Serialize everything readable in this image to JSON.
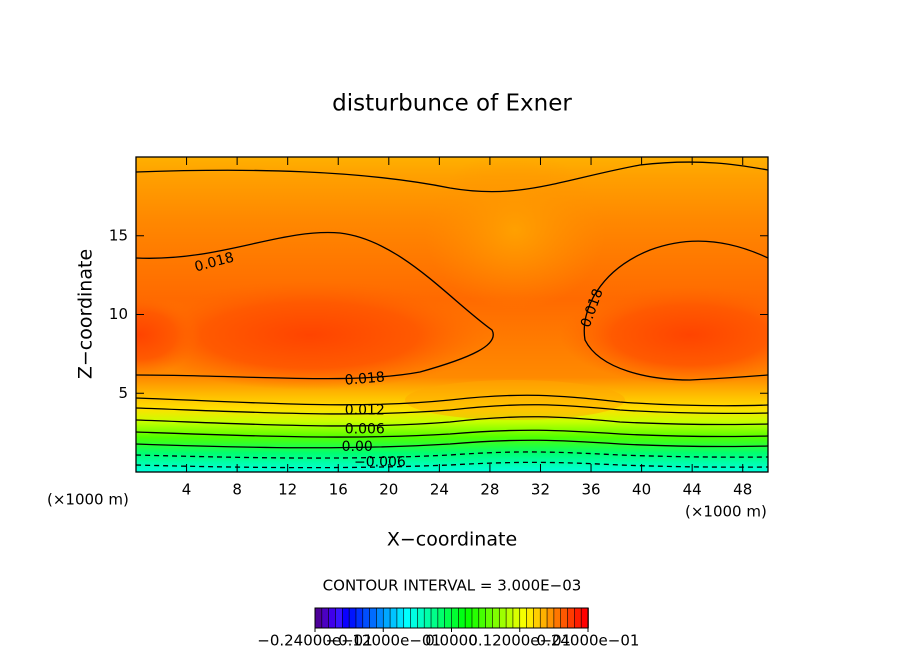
{
  "chart_data": {
    "type": "contour",
    "title": "disturbunce of Exner",
    "xlabel": "X−coordinate",
    "ylabel": "Z−coordinate",
    "x_unit_label": "(×1000 m)",
    "x_unit_label_right": "(×1000 m)",
    "xlim": [
      0,
      50
    ],
    "ylim": [
      0,
      20
    ],
    "xticks": [
      4,
      8,
      12,
      16,
      20,
      24,
      28,
      32,
      36,
      40,
      44,
      48
    ],
    "yticks": [
      5,
      10,
      15
    ],
    "contour_labels": [
      {
        "value": 0.018,
        "label": "0.018",
        "x": 6.2,
        "y": 13.3
      },
      {
        "value": 0.018,
        "label": "0.018",
        "x": 36.1,
        "y": 10.4
      },
      {
        "value": 0.018,
        "label": "0.018",
        "x": 18.1,
        "y": 5.9
      },
      {
        "value": 0.012,
        "label": "0.012",
        "x": 18.1,
        "y": 3.9
      },
      {
        "value": 0.006,
        "label": "0.006",
        "x": 18.1,
        "y": 2.7
      },
      {
        "value": 0,
        "label": "0.00",
        "x": 17.5,
        "y": 1.6
      },
      {
        "value": -0.006,
        "label": "−0.006",
        "x": 19.3,
        "y": 0.6
      }
    ],
    "contour_interval": "CONTOUR INTERVAL = 3.000E−03",
    "colorbar_lim": [
      -0.024,
      0.024
    ],
    "colorbar_ticks": [
      {
        "value": -0.024,
        "label": "−0.24000e−01"
      },
      {
        "value": -0.012,
        "label": "−0.12000e−01"
      },
      {
        "value": 0,
        "label": "0.0000"
      },
      {
        "value": 0.012,
        "label": "0.12000e−01"
      },
      {
        "value": 0.024,
        "label": "0.24000e−01"
      }
    ]
  }
}
